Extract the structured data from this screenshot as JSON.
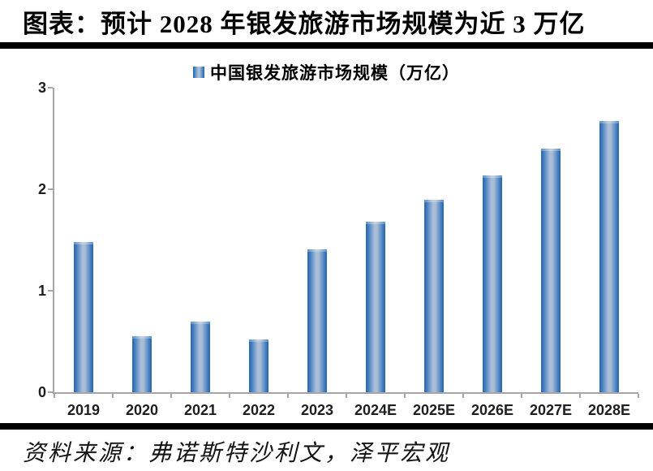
{
  "title": "图表：预计 2028 年银发旅游市场规模为近 3 万亿",
  "source": "资料来源：弗诺斯特沙利文，泽平宏观",
  "colors": {
    "bar_edge": "#2465b4",
    "bar_edge_soft": "#3a78bd",
    "bar_mid": "#a9bdd6",
    "axis": "#a6a6a6",
    "rule": "#000000",
    "axis_text": "#1f1f1f"
  },
  "chart_data": {
    "type": "bar",
    "title": "图表：预计 2028 年银发旅游市场规模为近 3 万亿",
    "series_label": "中国银发旅游市场规模（万亿）",
    "categories": [
      "2019",
      "2020",
      "2021",
      "2022",
      "2023",
      "2024E",
      "2025E",
      "2026E",
      "2027E",
      "2028E"
    ],
    "values": [
      1.48,
      0.55,
      0.7,
      0.52,
      1.41,
      1.68,
      1.9,
      2.14,
      2.4,
      2.67
    ],
    "xlabel": "",
    "ylabel": "",
    "ylim": [
      0,
      3
    ],
    "yticks": [
      0,
      1,
      2,
      3
    ],
    "grid": false,
    "legend_position": "top-center",
    "source_note": "资料来源：弗诺斯特沙利文，泽平宏观"
  }
}
